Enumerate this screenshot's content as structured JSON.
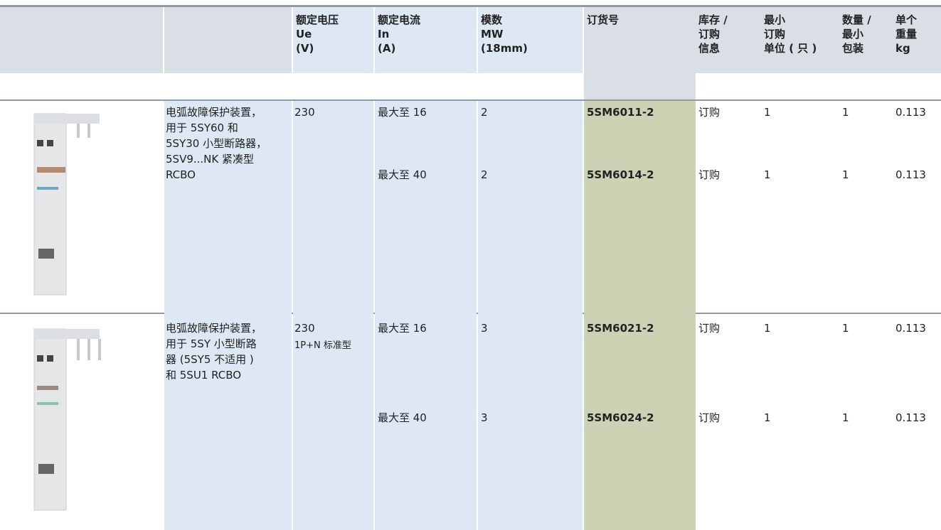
{
  "table": {
    "header": [
      [],
      [],
      [
        "额定电压",
        "Ue",
        "(V)"
      ],
      [
        "额定电流",
        "In",
        "(A)"
      ],
      [
        "模数",
        "MW",
        "(18mm)"
      ],
      [
        "订货号"
      ],
      [
        "库存 /",
        "订购",
        "信息"
      ],
      [
        "最小",
        "订购",
        "单位 ( 只 )"
      ],
      [
        "数量 /",
        "最小",
        "包装"
      ],
      [
        "单个",
        "重量",
        "kg"
      ]
    ],
    "rows": [
      {
        "description": [
          "电弧故障保护装置，",
          "用于 5SY60 和",
          "5SY30 小型断路器，",
          "5SV9...NK 紧凑型",
          "RCBO"
        ],
        "voltage": [
          "230"
        ],
        "items": [
          {
            "current": "最大至 16",
            "modules": "2",
            "order_no": "5SM6011-2",
            "stock": "订购",
            "min_order": "1",
            "qty": "1",
            "weight": "0.113"
          },
          {
            "current": "最大至 40",
            "modules": "2",
            "order_no": "5SM6014-2",
            "stock": "订购",
            "min_order": "1",
            "qty": "1",
            "weight": "0.113"
          }
        ]
      },
      {
        "description": [
          "电弧故障保护装置，",
          "用于 5SY 小型断路",
          "器 (5SY5 不适用 )",
          "和 5SU1 RCBO"
        ],
        "voltage": [
          "230",
          "1P+N 标准型"
        ],
        "items": [
          {
            "current": "最大至 16",
            "modules": "3",
            "order_no": "5SM6021-2",
            "stock": "订购",
            "min_order": "1",
            "qty": "1",
            "weight": "0.113"
          },
          {
            "current": "最大至 40",
            "modules": "3",
            "order_no": "5SM6024-2",
            "stock": "订购",
            "min_order": "1",
            "qty": "1",
            "weight": "0.113"
          }
        ]
      }
    ]
  }
}
